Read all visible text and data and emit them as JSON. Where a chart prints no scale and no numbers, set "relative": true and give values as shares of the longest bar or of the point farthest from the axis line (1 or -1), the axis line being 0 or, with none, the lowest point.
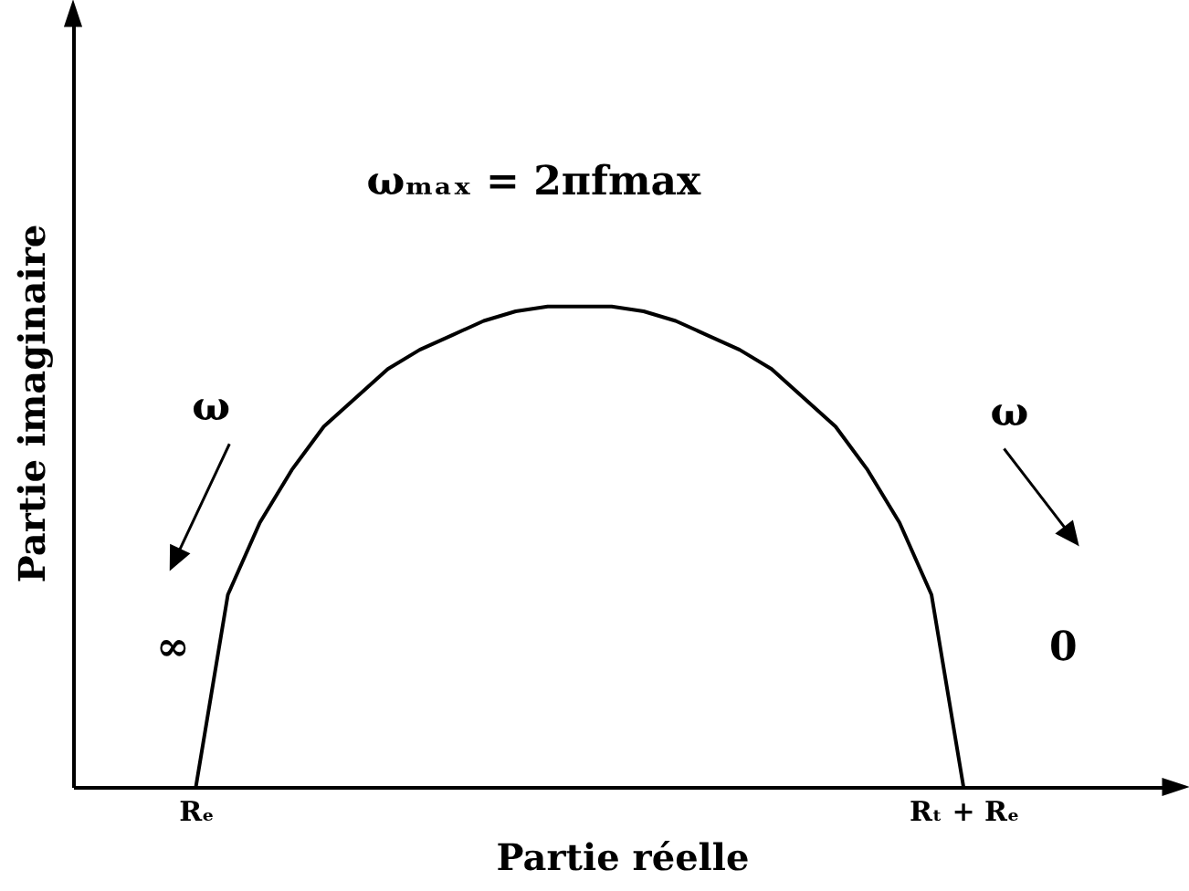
{
  "chart_data": {
    "type": "line",
    "relative": true,
    "xlabel": "Partie réelle",
    "ylabel": "Partie imaginaire",
    "categories": [
      "Rₑ",
      null,
      null,
      null,
      null,
      null,
      null,
      null,
      null,
      null,
      null,
      null,
      null,
      null,
      null,
      null,
      null,
      null,
      null,
      null,
      null,
      null,
      null,
      null,
      "Rₜ + Rₑ"
    ],
    "grid": false,
    "legend": false,
    "marker": "none",
    "line_style": "solid",
    "series": [
      {
        "color": "#000000",
        "values": [
          0,
          0.4,
          0.55,
          0.66,
          0.75,
          0.81,
          0.87,
          0.91,
          0.94,
          0.97,
          0.99,
          1,
          1,
          1,
          0.99,
          0.97,
          0.94,
          0.91,
          0.87,
          0.81,
          0.75,
          0.66,
          0.55,
          0.4,
          0
        ]
      }
    ],
    "annotations": [
      "ωₘₐₓ = 2πfmax",
      "ω",
      "∞",
      "ω",
      "0"
    ]
  }
}
